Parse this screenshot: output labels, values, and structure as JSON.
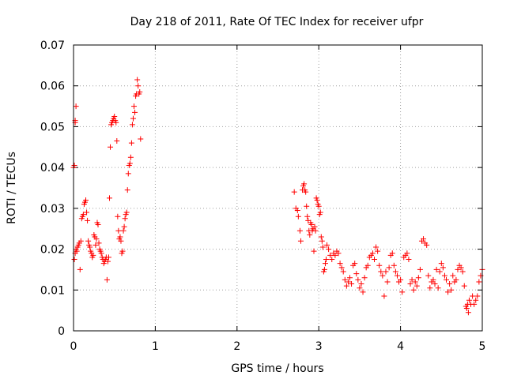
{
  "chart_data": {
    "type": "scatter",
    "title": "Day 218 of 2011, Rate Of TEC Index for receiver ufpr",
    "xlabel": "GPS time / hours",
    "ylabel": "ROTI / TECUs",
    "xlim": [
      0,
      5
    ],
    "ylim": [
      0,
      0.07
    ],
    "x_ticks": [
      "0",
      "1",
      "2",
      "3",
      "4",
      "5"
    ],
    "y_ticks": [
      "0",
      "0.01",
      "0.02",
      "0.03",
      "0.04",
      "0.05",
      "0.06",
      "0.07"
    ],
    "grid": true,
    "marker": "+",
    "color": "#ff0000",
    "series": [
      {
        "points": [
          [
            0.0,
            0.04
          ],
          [
            0.01,
            0.0405
          ],
          [
            0.02,
            0.051
          ],
          [
            0.02,
            0.0515
          ],
          [
            0.03,
            0.055
          ],
          [
            0.01,
            0.0175
          ],
          [
            0.02,
            0.019
          ],
          [
            0.03,
            0.02
          ],
          [
            0.04,
            0.0195
          ],
          [
            0.05,
            0.0205
          ],
          [
            0.06,
            0.021
          ],
          [
            0.07,
            0.0215
          ],
          [
            0.08,
            0.015
          ],
          [
            0.09,
            0.022
          ],
          [
            0.1,
            0.0275
          ],
          [
            0.11,
            0.028
          ],
          [
            0.12,
            0.0285
          ],
          [
            0.13,
            0.031
          ],
          [
            0.14,
            0.0315
          ],
          [
            0.15,
            0.032
          ],
          [
            0.16,
            0.029
          ],
          [
            0.17,
            0.027
          ],
          [
            0.18,
            0.022
          ],
          [
            0.19,
            0.021
          ],
          [
            0.2,
            0.0205
          ],
          [
            0.21,
            0.0195
          ],
          [
            0.22,
            0.019
          ],
          [
            0.23,
            0.018
          ],
          [
            0.24,
            0.0185
          ],
          [
            0.25,
            0.0235
          ],
          [
            0.26,
            0.023
          ],
          [
            0.27,
            0.021
          ],
          [
            0.28,
            0.0225
          ],
          [
            0.29,
            0.0265
          ],
          [
            0.3,
            0.026
          ],
          [
            0.31,
            0.0215
          ],
          [
            0.32,
            0.02
          ],
          [
            0.33,
            0.0195
          ],
          [
            0.34,
            0.019
          ],
          [
            0.35,
            0.018
          ],
          [
            0.36,
            0.0175
          ],
          [
            0.37,
            0.0165
          ],
          [
            0.38,
            0.017
          ],
          [
            0.39,
            0.0175
          ],
          [
            0.4,
            0.018
          ],
          [
            0.41,
            0.0125
          ],
          [
            0.42,
            0.017
          ],
          [
            0.43,
            0.018
          ],
          [
            0.44,
            0.0325
          ],
          [
            0.45,
            0.045
          ],
          [
            0.46,
            0.0505
          ],
          [
            0.47,
            0.051
          ],
          [
            0.48,
            0.0515
          ],
          [
            0.49,
            0.052
          ],
          [
            0.5,
            0.0525
          ],
          [
            0.51,
            0.0515
          ],
          [
            0.52,
            0.051
          ],
          [
            0.53,
            0.0465
          ],
          [
            0.54,
            0.028
          ],
          [
            0.55,
            0.0245
          ],
          [
            0.56,
            0.0225
          ],
          [
            0.57,
            0.023
          ],
          [
            0.58,
            0.022
          ],
          [
            0.59,
            0.019
          ],
          [
            0.6,
            0.0195
          ],
          [
            0.61,
            0.0245
          ],
          [
            0.62,
            0.0255
          ],
          [
            0.63,
            0.0275
          ],
          [
            0.64,
            0.0285
          ],
          [
            0.65,
            0.029
          ],
          [
            0.66,
            0.0345
          ],
          [
            0.67,
            0.0385
          ],
          [
            0.68,
            0.0405
          ],
          [
            0.69,
            0.041
          ],
          [
            0.7,
            0.0425
          ],
          [
            0.71,
            0.046
          ],
          [
            0.72,
            0.0505
          ],
          [
            0.73,
            0.052
          ],
          [
            0.74,
            0.055
          ],
          [
            0.75,
            0.0535
          ],
          [
            0.76,
            0.0575
          ],
          [
            0.77,
            0.058
          ],
          [
            0.78,
            0.0615
          ],
          [
            0.79,
            0.06
          ],
          [
            0.8,
            0.058
          ],
          [
            0.81,
            0.0585
          ],
          [
            0.82,
            0.047
          ],
          [
            2.7,
            0.034
          ],
          [
            2.72,
            0.03
          ],
          [
            2.74,
            0.0295
          ],
          [
            2.75,
            0.028
          ],
          [
            2.77,
            0.0245
          ],
          [
            2.78,
            0.022
          ],
          [
            2.8,
            0.0345
          ],
          [
            2.81,
            0.0355
          ],
          [
            2.82,
            0.036
          ],
          [
            2.83,
            0.0345
          ],
          [
            2.84,
            0.034
          ],
          [
            2.85,
            0.0305
          ],
          [
            2.86,
            0.028
          ],
          [
            2.87,
            0.027
          ],
          [
            2.88,
            0.0245
          ],
          [
            2.89,
            0.0235
          ],
          [
            2.9,
            0.0265
          ],
          [
            2.91,
            0.026
          ],
          [
            2.92,
            0.0245
          ],
          [
            2.93,
            0.025
          ],
          [
            2.94,
            0.0195
          ],
          [
            2.95,
            0.0255
          ],
          [
            2.96,
            0.0245
          ],
          [
            2.97,
            0.0325
          ],
          [
            2.98,
            0.032
          ],
          [
            2.99,
            0.031
          ],
          [
            3.0,
            0.0305
          ],
          [
            3.01,
            0.0285
          ],
          [
            3.02,
            0.029
          ],
          [
            3.03,
            0.023
          ],
          [
            3.04,
            0.022
          ],
          [
            3.05,
            0.0205
          ],
          [
            3.06,
            0.0145
          ],
          [
            3.07,
            0.015
          ],
          [
            3.08,
            0.0165
          ],
          [
            3.09,
            0.0175
          ],
          [
            3.1,
            0.021
          ],
          [
            3.12,
            0.02
          ],
          [
            3.14,
            0.0185
          ],
          [
            3.16,
            0.0175
          ],
          [
            3.18,
            0.019
          ],
          [
            3.2,
            0.0185
          ],
          [
            3.22,
            0.0195
          ],
          [
            3.24,
            0.019
          ],
          [
            3.26,
            0.0165
          ],
          [
            3.28,
            0.0155
          ],
          [
            3.3,
            0.0145
          ],
          [
            3.32,
            0.0125
          ],
          [
            3.34,
            0.011
          ],
          [
            3.36,
            0.012
          ],
          [
            3.38,
            0.013
          ],
          [
            3.4,
            0.0115
          ],
          [
            3.42,
            0.016
          ],
          [
            3.44,
            0.0165
          ],
          [
            3.46,
            0.014
          ],
          [
            3.48,
            0.0125
          ],
          [
            3.5,
            0.0105
          ],
          [
            3.52,
            0.0115
          ],
          [
            3.54,
            0.0095
          ],
          [
            3.56,
            0.013
          ],
          [
            3.58,
            0.0155
          ],
          [
            3.6,
            0.016
          ],
          [
            3.62,
            0.018
          ],
          [
            3.64,
            0.0185
          ],
          [
            3.66,
            0.019
          ],
          [
            3.68,
            0.0175
          ],
          [
            3.7,
            0.0205
          ],
          [
            3.72,
            0.0195
          ],
          [
            3.74,
            0.016
          ],
          [
            3.76,
            0.0145
          ],
          [
            3.78,
            0.0135
          ],
          [
            3.8,
            0.0085
          ],
          [
            3.82,
            0.0145
          ],
          [
            3.84,
            0.012
          ],
          [
            3.86,
            0.0155
          ],
          [
            3.88,
            0.0185
          ],
          [
            3.9,
            0.019
          ],
          [
            3.92,
            0.016
          ],
          [
            3.94,
            0.0145
          ],
          [
            3.96,
            0.0135
          ],
          [
            3.98,
            0.012
          ],
          [
            4.0,
            0.0125
          ],
          [
            4.02,
            0.0095
          ],
          [
            4.04,
            0.018
          ],
          [
            4.06,
            0.0185
          ],
          [
            4.08,
            0.019
          ],
          [
            4.1,
            0.0175
          ],
          [
            4.12,
            0.0115
          ],
          [
            4.14,
            0.0125
          ],
          [
            4.16,
            0.01
          ],
          [
            4.18,
            0.012
          ],
          [
            4.2,
            0.011
          ],
          [
            4.22,
            0.013
          ],
          [
            4.24,
            0.015
          ],
          [
            4.26,
            0.022
          ],
          [
            4.28,
            0.0225
          ],
          [
            4.3,
            0.0215
          ],
          [
            4.32,
            0.021
          ],
          [
            4.34,
            0.0135
          ],
          [
            4.36,
            0.0105
          ],
          [
            4.38,
            0.012
          ],
          [
            4.4,
            0.0125
          ],
          [
            4.42,
            0.0115
          ],
          [
            4.44,
            0.015
          ],
          [
            4.46,
            0.0105
          ],
          [
            4.48,
            0.0145
          ],
          [
            4.5,
            0.0165
          ],
          [
            4.52,
            0.0155
          ],
          [
            4.54,
            0.0135
          ],
          [
            4.56,
            0.0125
          ],
          [
            4.58,
            0.0095
          ],
          [
            4.6,
            0.0115
          ],
          [
            4.62,
            0.01
          ],
          [
            4.64,
            0.0135
          ],
          [
            4.66,
            0.012
          ],
          [
            4.68,
            0.0125
          ],
          [
            4.7,
            0.015
          ],
          [
            4.72,
            0.016
          ],
          [
            4.74,
            0.0155
          ],
          [
            4.76,
            0.0145
          ],
          [
            4.78,
            0.011
          ],
          [
            4.8,
            0.006
          ],
          [
            4.81,
            0.0055
          ],
          [
            4.82,
            0.0065
          ],
          [
            4.83,
            0.0045
          ],
          [
            4.84,
            0.0075
          ],
          [
            4.86,
            0.0065
          ],
          [
            4.88,
            0.0085
          ],
          [
            4.9,
            0.0065
          ],
          [
            4.92,
            0.0075
          ],
          [
            4.94,
            0.0085
          ],
          [
            4.96,
            0.012
          ],
          [
            4.98,
            0.0135
          ],
          [
            5.0,
            0.015
          ]
        ]
      }
    ]
  }
}
